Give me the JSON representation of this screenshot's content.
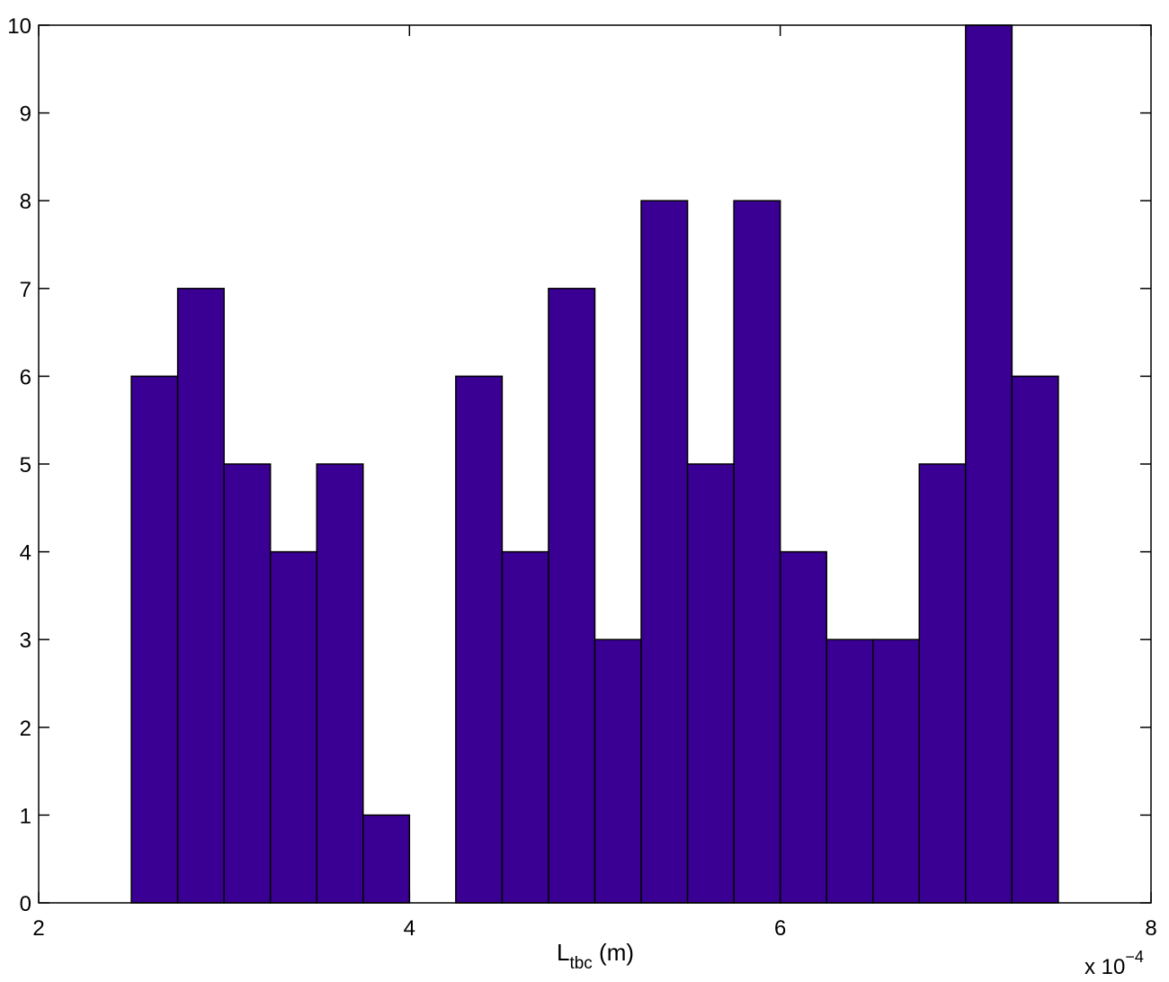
{
  "chart_data": {
    "type": "bar",
    "subtype": "histogram",
    "bins": [
      {
        "left": 2.5,
        "right": 2.75,
        "count": 6
      },
      {
        "left": 2.75,
        "right": 3.0,
        "count": 7
      },
      {
        "left": 3.0,
        "right": 3.25,
        "count": 5
      },
      {
        "left": 3.25,
        "right": 3.5,
        "count": 4
      },
      {
        "left": 3.5,
        "right": 3.75,
        "count": 5
      },
      {
        "left": 3.75,
        "right": 4.0,
        "count": 1
      },
      {
        "left": 4.0,
        "right": 4.25,
        "count": 0
      },
      {
        "left": 4.25,
        "right": 4.5,
        "count": 6
      },
      {
        "left": 4.5,
        "right": 4.75,
        "count": 4
      },
      {
        "left": 4.75,
        "right": 5.0,
        "count": 7
      },
      {
        "left": 5.0,
        "right": 5.25,
        "count": 3
      },
      {
        "left": 5.25,
        "right": 5.5,
        "count": 8
      },
      {
        "left": 5.5,
        "right": 5.75,
        "count": 5
      },
      {
        "left": 5.75,
        "right": 6.0,
        "count": 8
      },
      {
        "left": 6.0,
        "right": 6.25,
        "count": 4
      },
      {
        "left": 6.25,
        "right": 6.5,
        "count": 3
      },
      {
        "left": 6.5,
        "right": 6.75,
        "count": 3
      },
      {
        "left": 6.75,
        "right": 7.0,
        "count": 5
      },
      {
        "left": 7.0,
        "right": 7.25,
        "count": 10
      },
      {
        "left": 7.25,
        "right": 7.5,
        "count": 6
      }
    ],
    "xlim": [
      2,
      8
    ],
    "ylim": [
      0,
      10
    ],
    "x_ticks": [
      "2",
      "4",
      "6",
      "8"
    ],
    "y_ticks": [
      "0",
      "1",
      "2",
      "3",
      "4",
      "5",
      "6",
      "7",
      "8",
      "9",
      "10"
    ],
    "xlabel_main": "L",
    "xlabel_subscript": "tbc",
    "xlabel_unit": " (m)",
    "x_multiplier_base": "x 10",
    "x_multiplier_exponent": "−4",
    "title": "",
    "ylabel": "",
    "grid": false,
    "legend": "none",
    "bar_color": "#390093",
    "edge_color": "#000000"
  }
}
